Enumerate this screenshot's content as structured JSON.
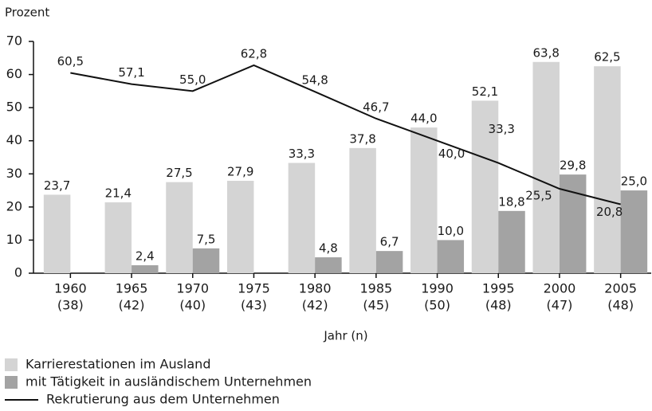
{
  "chart_data": {
    "type": "bar",
    "y_label": "Prozent",
    "x_label": "Jahr (n)",
    "categories": [
      [
        "1960",
        "(38)"
      ],
      [
        "1965",
        "(42)"
      ],
      [
        "1970",
        "(40)"
      ],
      [
        "1975",
        "(43)"
      ],
      [
        "1980",
        "(42)"
      ],
      [
        "1985",
        "(45)"
      ],
      [
        "1990",
        "(50)"
      ],
      [
        "1995",
        "(48)"
      ],
      [
        "2000",
        "(47)"
      ],
      [
        "2005",
        "(48)"
      ]
    ],
    "series": [
      {
        "name": "Karrierestationen im Ausland",
        "type": "bar",
        "color": "#d4d4d4",
        "values": [
          23.7,
          21.4,
          27.5,
          27.9,
          33.3,
          37.8,
          44.0,
          52.1,
          63.8,
          62.5
        ],
        "value_labels": [
          "23,7",
          "21,4",
          "27,5",
          "27,9",
          "33,3",
          "37,8",
          "44,0",
          "52,1",
          "63,8",
          "62,5"
        ]
      },
      {
        "name": "mit Tätigkeit in ausländischem Unternehmen",
        "type": "bar",
        "color": "#a3a3a3",
        "values": [
          null,
          2.4,
          7.5,
          null,
          4.8,
          6.7,
          10.0,
          18.8,
          29.8,
          25.0
        ],
        "value_labels": [
          null,
          "2,4",
          "7,5",
          null,
          "4,8",
          "6,7",
          "10,0",
          "18,8",
          "29,8",
          "25,0"
        ]
      },
      {
        "name": "Rekrutierung aus dem Unternehmen",
        "type": "line",
        "color": "#111111",
        "values": [
          60.5,
          57.1,
          55.0,
          62.8,
          54.8,
          46.7,
          40.0,
          33.3,
          25.5,
          20.8
        ],
        "value_labels": [
          "60,5",
          "57,1",
          "55,0",
          "62,8",
          "54,8",
          "46,7",
          "40,0",
          "33,3",
          "25,5",
          "20,8"
        ]
      }
    ],
    "ylim": [
      0,
      70
    ],
    "yticks": [
      0,
      10,
      20,
      30,
      40,
      50,
      60,
      70
    ],
    "grid": false
  }
}
